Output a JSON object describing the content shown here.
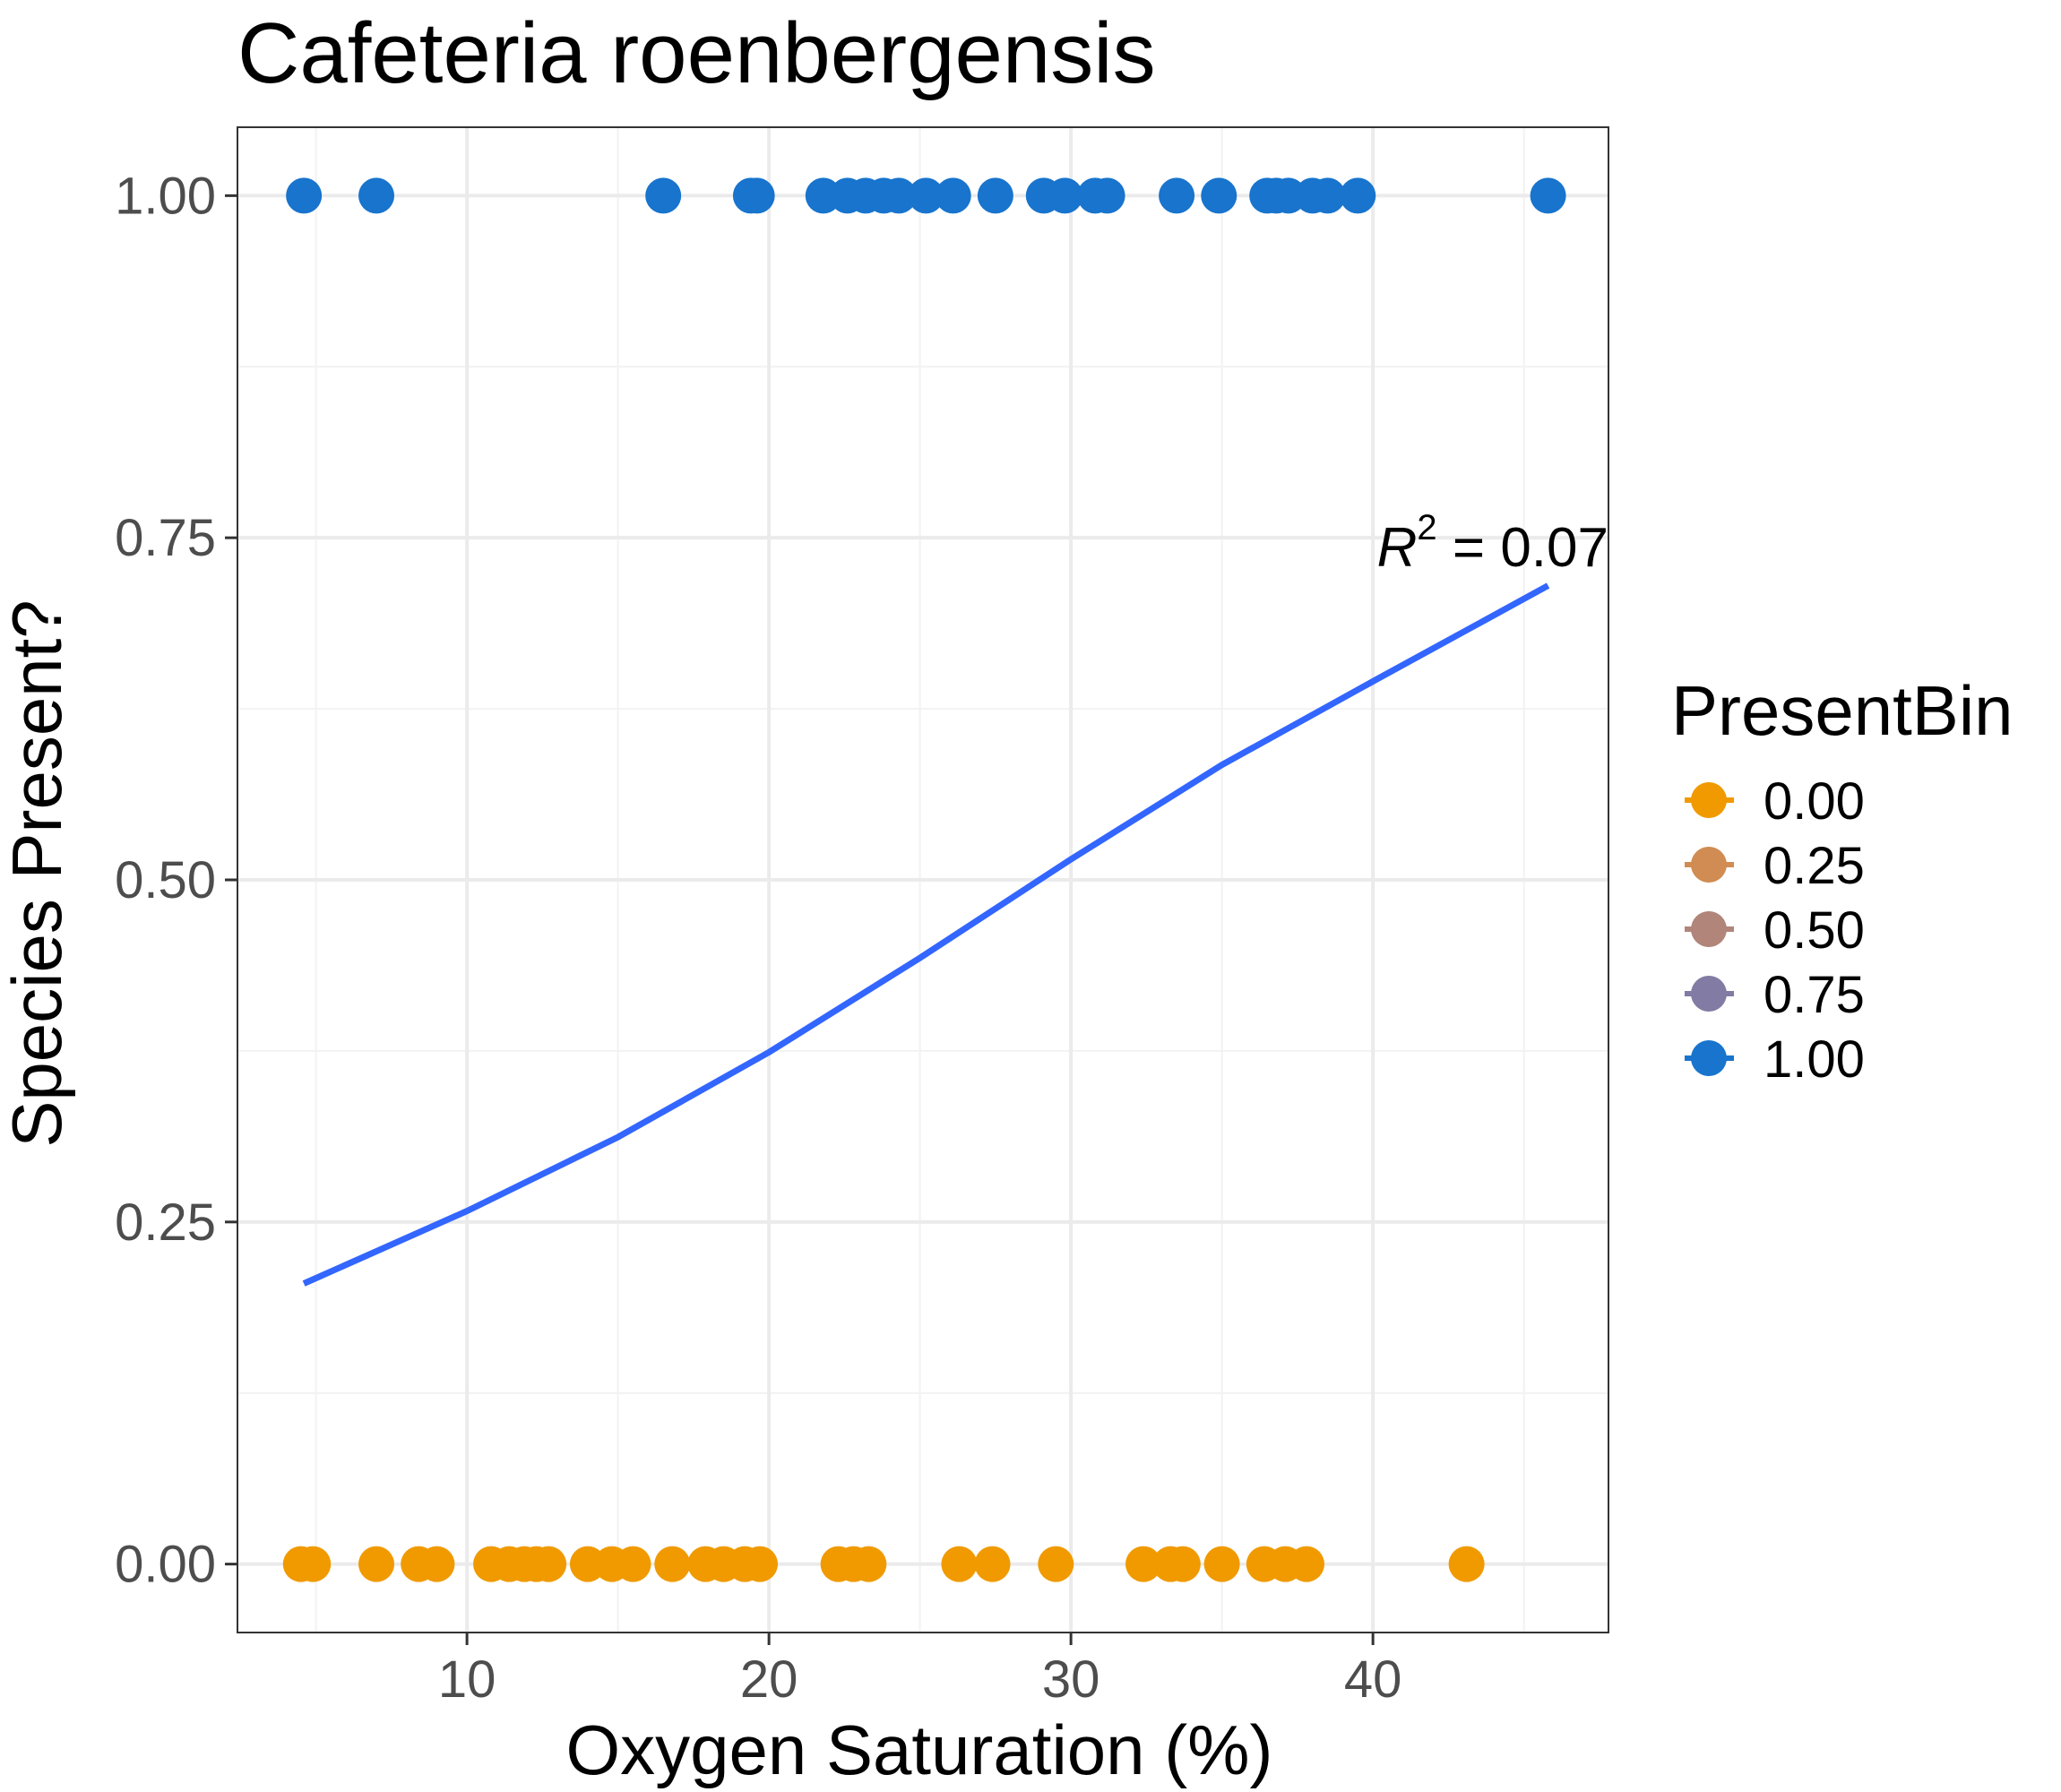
{
  "chart_data": {
    "type": "scatter",
    "title": "Cafeteria roenbergensis",
    "xlabel": "Oxygen Saturation (%)",
    "ylabel": "Species Present?",
    "xlim": [
      2.4,
      47.8
    ],
    "ylim": [
      -0.05,
      1.05
    ],
    "x_ticks": [
      10,
      20,
      30,
      40
    ],
    "x_tick_labels": [
      "10",
      "20",
      "30",
      "40"
    ],
    "y_ticks": [
      0,
      0.25,
      0.5,
      0.75,
      1
    ],
    "y_tick_labels": [
      "0.00",
      "0.25",
      "0.50",
      "0.75",
      "1.00"
    ],
    "grid": true,
    "legend": {
      "title": "PresentBin",
      "placement": "right",
      "entries": [
        {
          "label": "0.00",
          "color": "#F09A00"
        },
        {
          "label": "0.25",
          "color": "#D08C52"
        },
        {
          "label": "0.50",
          "color": "#B1857A"
        },
        {
          "label": "0.75",
          "color": "#827BA4"
        },
        {
          "label": "1.00",
          "color": "#1874CD"
        }
      ]
    },
    "series": [
      {
        "name": "1.00",
        "color": "#1874CD",
        "y": 1,
        "x": [
          4.6,
          7.0,
          16.5,
          19.4,
          19.6,
          21.8,
          22.6,
          23.2,
          23.8,
          24.3,
          25.2,
          26.1,
          27.5,
          29.1,
          29.8,
          30.8,
          31.2,
          33.5,
          34.9,
          36.5,
          36.8,
          37.2,
          38.0,
          38.5,
          39.5,
          45.8
        ]
      },
      {
        "name": "0.00",
        "color": "#F09A00",
        "y": 0,
        "x": [
          4.5,
          4.9,
          7.0,
          8.4,
          9.0,
          10.8,
          11.4,
          11.9,
          12.3,
          12.7,
          14.0,
          14.8,
          15.5,
          16.8,
          17.9,
          18.5,
          19.2,
          19.7,
          22.3,
          22.8,
          23.3,
          26.3,
          27.4,
          29.5,
          32.4,
          33.3,
          33.7,
          35.0,
          36.4,
          37.1,
          37.8,
          43.1
        ]
      },
      {
        "name": "fit",
        "type": "line",
        "color": "#3366FF",
        "x": [
          4.6,
          10,
          15,
          20,
          25,
          30,
          35,
          40,
          45.8
        ],
        "y": [
          0.205,
          0.258,
          0.312,
          0.374,
          0.443,
          0.515,
          0.584,
          0.645,
          0.715
        ]
      }
    ],
    "annotation": {
      "base": "R",
      "exponent": "2",
      "text": " = 0.07"
    }
  }
}
